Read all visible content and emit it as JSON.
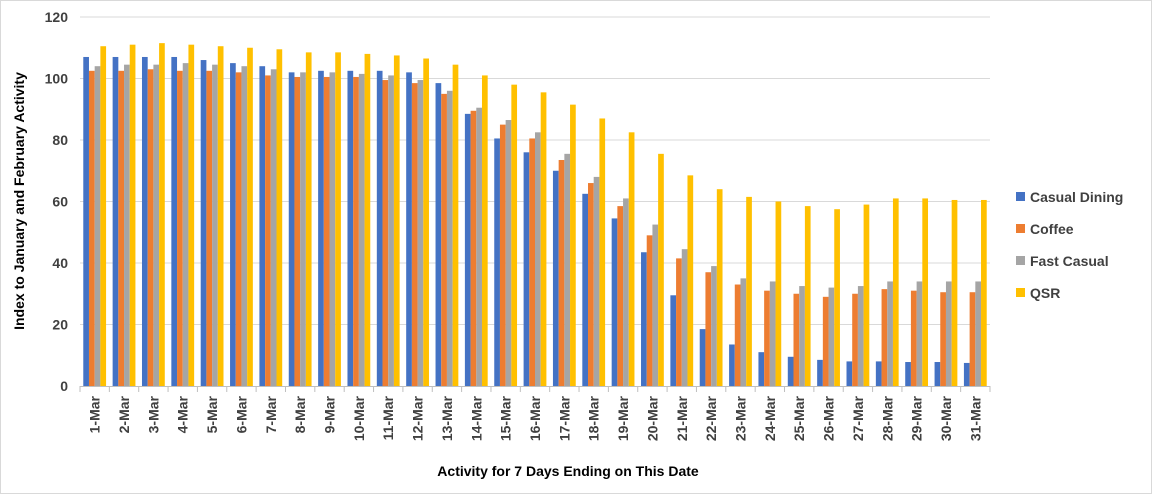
{
  "chart_data": {
    "type": "bar",
    "xlabel": "Activity for 7 Days Ending on This Date",
    "ylabel": "Index to January and February Activity",
    "ylim": [
      0,
      120
    ],
    "yticks": [
      0,
      20,
      40,
      60,
      80,
      100,
      120
    ],
    "grid": true,
    "legend_position": "right",
    "categories": [
      "1-Mar",
      "2-Mar",
      "3-Mar",
      "4-Mar",
      "5-Mar",
      "6-Mar",
      "7-Mar",
      "8-Mar",
      "9-Mar",
      "10-Mar",
      "11-Mar",
      "12-Mar",
      "13-Mar",
      "14-Mar",
      "15-Mar",
      "16-Mar",
      "17-Mar",
      "18-Mar",
      "19-Mar",
      "20-Mar",
      "21-Mar",
      "22-Mar",
      "23-Mar",
      "24-Mar",
      "25-Mar",
      "26-Mar",
      "27-Mar",
      "28-Mar",
      "29-Mar",
      "30-Mar",
      "31-Mar"
    ],
    "series": [
      {
        "name": "Casual Dining",
        "color": "#4472c4",
        "values": [
          107,
          107,
          107,
          107,
          106,
          105,
          104,
          102,
          102.5,
          102.5,
          102.5,
          102,
          98.5,
          88.5,
          80.5,
          76,
          70,
          62.5,
          54.5,
          43.5,
          29.5,
          18.5,
          13.5,
          11,
          9.5,
          8.5,
          8,
          8,
          7.8,
          7.8,
          7.5
        ]
      },
      {
        "name": "Coffee",
        "color": "#ed7d31",
        "values": [
          102.5,
          102.5,
          103,
          102.5,
          102.5,
          102,
          101,
          100.5,
          100.5,
          100.5,
          99.5,
          98.5,
          95,
          89.5,
          85,
          80.5,
          73.5,
          66,
          58.5,
          49,
          41.5,
          37,
          33,
          31,
          30,
          29,
          30,
          31.5,
          31,
          30.5,
          30.5
        ]
      },
      {
        "name": "Fast Casual",
        "color": "#a5a5a5",
        "values": [
          104,
          104.5,
          104.5,
          105,
          104.5,
          104,
          103,
          102,
          102,
          101.5,
          101,
          99.5,
          96,
          90.5,
          86.5,
          82.5,
          75.5,
          68,
          61,
          52.5,
          44.5,
          39,
          35,
          34,
          32.5,
          32,
          32.5,
          34,
          34,
          34,
          34
        ]
      },
      {
        "name": "QSR",
        "color": "#ffc000",
        "values": [
          110.5,
          111,
          111.5,
          111,
          110.5,
          110,
          109.5,
          108.5,
          108.5,
          108,
          107.5,
          106.5,
          104.5,
          101,
          98,
          95.5,
          91.5,
          87,
          82.5,
          75.5,
          68.5,
          64,
          61.5,
          60,
          58.5,
          57.5,
          59,
          61,
          61,
          60.5,
          60.5
        ]
      }
    ]
  }
}
